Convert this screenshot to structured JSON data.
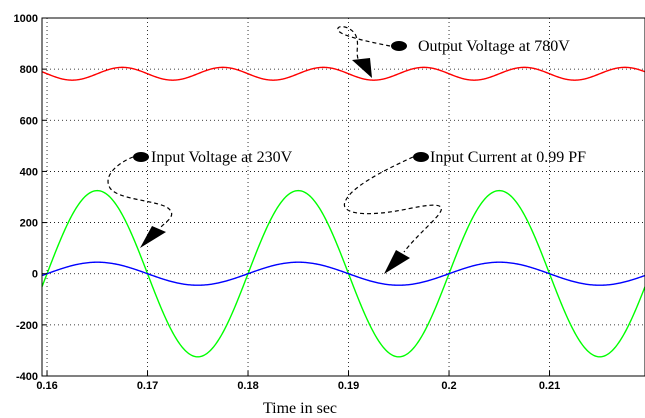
{
  "chart_data": {
    "type": "line",
    "xlabel": "Time in sec",
    "ylabel": "",
    "xlim": [
      0.1595,
      0.2195
    ],
    "ylim": [
      -400,
      1000
    ],
    "xticks": [
      "0.16",
      "0.17",
      "0.18",
      "0.19",
      "0.2",
      "0.21"
    ],
    "yticks": [
      "-400",
      "-200",
      "0",
      "200",
      "400",
      "600",
      "800",
      "1000"
    ],
    "grid": true,
    "series": [
      {
        "key": "output_voltage",
        "color": "#ff0000",
        "description": "Ripple around 780 V, amplitude about 25 V, 100 Hz",
        "dc": 782,
        "amplitude": 25,
        "frequency": 100,
        "phase_peak_x": 0.1675
      },
      {
        "key": "input_voltage",
        "color": "#00ff00",
        "description": "Sine, amplitude about 325 V, 50 Hz",
        "amplitude": 325,
        "frequency": 50,
        "phase_peak_x": 0.165
      },
      {
        "key": "input_current",
        "color": "#0000ff",
        "description": "Sine, amplitude about 45, 50 Hz, in phase with input voltage",
        "amplitude": 45,
        "frequency": 50,
        "phase_peak_x": 0.165
      }
    ],
    "annotations": [
      {
        "key": "output",
        "text": "Output Voltage at 780V"
      },
      {
        "key": "input_voltage",
        "text": "Input Voltage at 230V"
      },
      {
        "key": "input_current",
        "text": "Input Current at 0.99 PF"
      }
    ]
  }
}
